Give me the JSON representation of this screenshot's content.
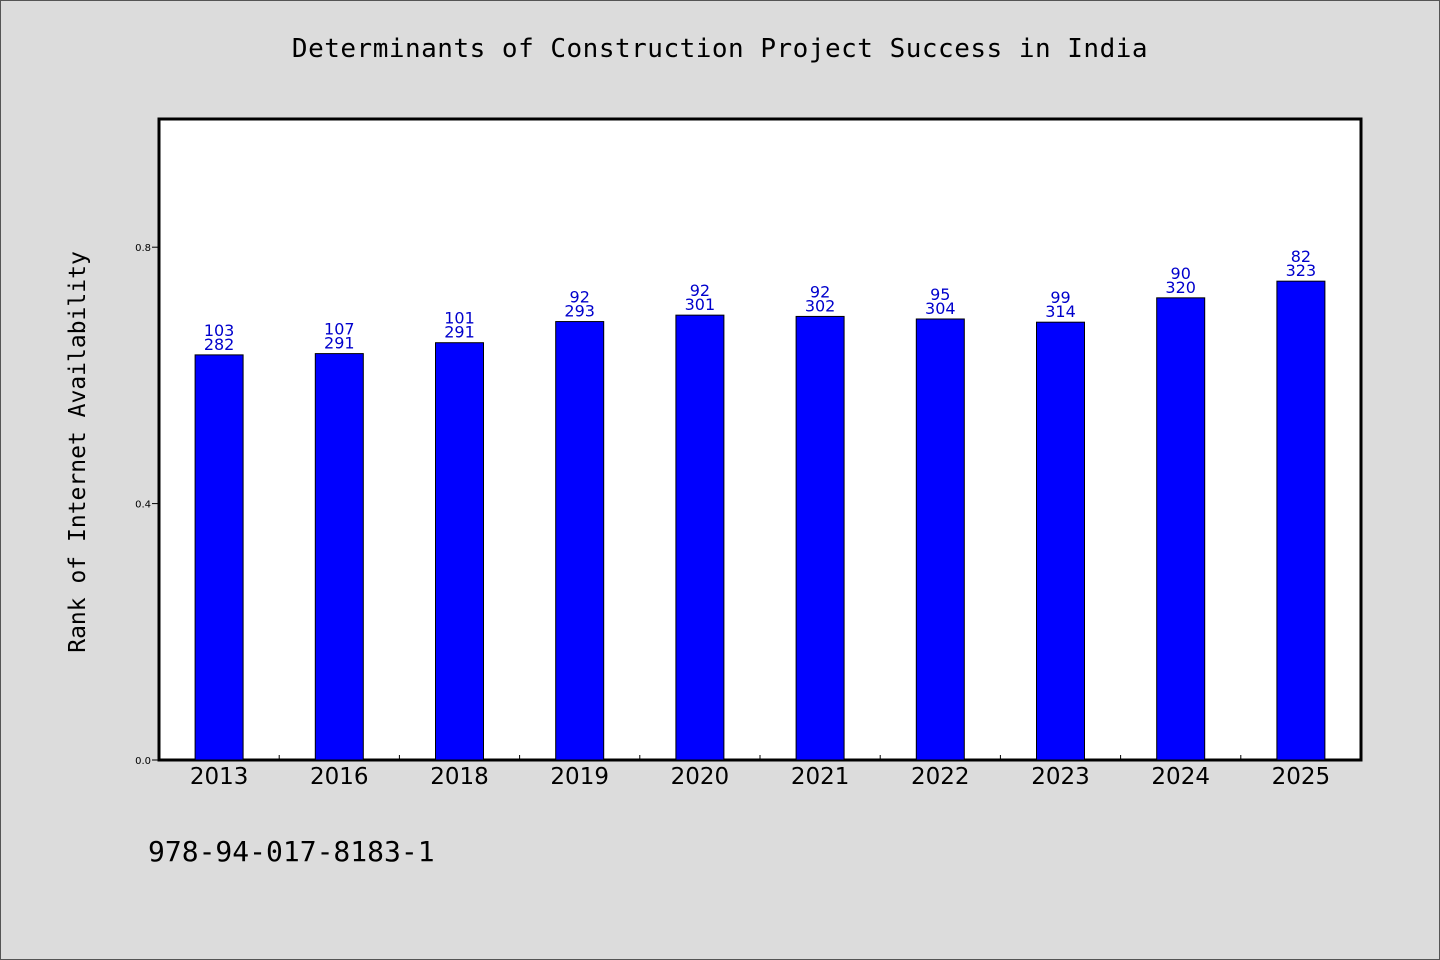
{
  "chart_data": {
    "type": "bar",
    "title": "Determinants of Construction Project Success in India",
    "xlabel": "",
    "ylabel": "Rank of Internet Availability",
    "categories": [
      "2013",
      "2016",
      "2018",
      "2019",
      "2020",
      "2021",
      "2022",
      "2023",
      "2024",
      "2025"
    ],
    "values": [
      0.632,
      0.634,
      0.651,
      0.684,
      0.694,
      0.692,
      0.688,
      0.683,
      0.721,
      0.747
    ],
    "bar_labels_top": [
      "103",
      "107",
      "101",
      "92",
      "92",
      "92",
      "95",
      "99",
      "90",
      "82"
    ],
    "bar_labels_bottom": [
      "282",
      "291",
      "291",
      "293",
      "301",
      "302",
      "304",
      "314",
      "320",
      "323"
    ],
    "ylim": [
      0.0,
      1.0
    ],
    "yticks": [
      "0.0",
      "0.4",
      "0.8"
    ],
    "ytick_values": [
      0.0,
      0.4,
      0.8
    ],
    "bar_color": "#0000ff",
    "label_color": "#0000cc",
    "grid": false,
    "legend": "none"
  },
  "footer": {
    "identifier": "978-94-017-8183-1"
  }
}
